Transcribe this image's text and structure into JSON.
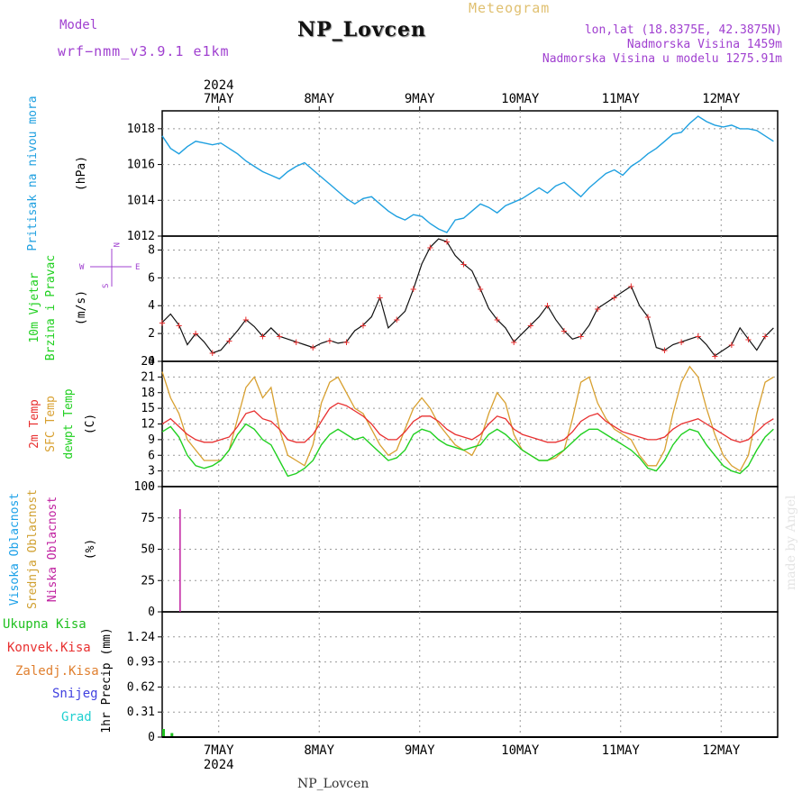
{
  "header": {
    "title": "NP_Lovcen",
    "model_label": "Model",
    "model_name": "wrf−nmm_v3.9.1  e1km",
    "meteogram_label": "Meteogram",
    "coords": "lon,lat (18.8375E, 42.3875N)",
    "elevation": "Nadmorska Visina 1459m",
    "model_elevation": "Nadmorska Visina u modelu 1275.91m"
  },
  "footer": {
    "station": "NP_Lovcen",
    "credit": "made by Angel"
  },
  "colors": {
    "pressure": "#1fa0e0",
    "t2m": "#e83030",
    "tsfc": "#d8a030",
    "dewp": "#20d020",
    "cloud_high": "#1aa0e8",
    "cloud_mid": "#d0a030",
    "cloud_low": "#c020a0",
    "precip_total": "#20c020",
    "precip_conv": "#e83030",
    "precip_frz": "#e08030",
    "snow": "#4040e0",
    "hail": "#20d0d0",
    "wind_dir": "#a040d0"
  },
  "chart_data": [
    {
      "type": "line",
      "panel": "pressure",
      "ylabels": [
        "Pritisak na nivou mora",
        "(hPa)"
      ],
      "ylim": [
        1012,
        1019
      ],
      "yticks": [
        1012,
        1014,
        1016,
        1018
      ],
      "grid": true,
      "x_top_year": "2024",
      "x_top_ticks": [
        "7MAY",
        "8MAY",
        "9MAY",
        "10MAY",
        "11MAY",
        "12MAY"
      ],
      "x": [
        0,
        2,
        4,
        6,
        8,
        10,
        12,
        14,
        16,
        18,
        20,
        22,
        24,
        26,
        28,
        30,
        32,
        34,
        36,
        38,
        40,
        42,
        44,
        46,
        48,
        50,
        52,
        54,
        56,
        58,
        60,
        62,
        64,
        66,
        68,
        70,
        72,
        74,
        76,
        78,
        80,
        82,
        84,
        86,
        88,
        90,
        92,
        94,
        96,
        98,
        100,
        102,
        104,
        106,
        108,
        110,
        112,
        114,
        116,
        118,
        120,
        122,
        124,
        126,
        128,
        130,
        132,
        134,
        136,
        138,
        140,
        142,
        144,
        146
      ],
      "series": [
        {
          "values": [
            1017.6,
            1016.9,
            1016.6,
            1017.0,
            1017.3,
            1017.2,
            1017.1,
            1017.2,
            1016.9,
            1016.6,
            1016.2,
            1015.9,
            1015.6,
            1015.4,
            1015.2,
            1015.6,
            1015.9,
            1016.1,
            1015.7,
            1015.3,
            1014.9,
            1014.5,
            1014.1,
            1013.8,
            1014.1,
            1014.2,
            1013.8,
            1013.4,
            1013.1,
            1012.9,
            1013.2,
            1013.1,
            1012.7,
            1012.4,
            1012.2,
            1012.9,
            1013.0,
            1013.4,
            1013.8,
            1013.6,
            1013.3,
            1013.7,
            1013.9,
            1014.1,
            1014.4,
            1014.7,
            1014.4,
            1014.8,
            1015.0,
            1014.6,
            1014.2,
            1014.7,
            1015.1,
            1015.5,
            1015.7,
            1015.4,
            1015.9,
            1016.2,
            1016.6,
            1016.9,
            1017.3,
            1017.7,
            1017.8,
            1018.3,
            1018.7,
            1018.4,
            1018.2,
            1018.1,
            1018.2,
            1018.0,
            1018.0,
            1017.9,
            1017.6,
            1017.3
          ]
        }
      ]
    },
    {
      "type": "line",
      "panel": "wind",
      "ylabels": [
        "10m Vjetar",
        "Brzina i Pravac",
        "(m/s)"
      ],
      "compass": [
        "W",
        "E",
        "N",
        "S"
      ],
      "ylim": [
        0,
        9
      ],
      "yticks": [
        0,
        2,
        4,
        6,
        8
      ],
      "grid": true,
      "x": [
        0,
        2,
        4,
        6,
        8,
        10,
        12,
        14,
        16,
        18,
        20,
        22,
        24,
        26,
        28,
        30,
        32,
        34,
        36,
        38,
        40,
        42,
        44,
        46,
        48,
        50,
        52,
        54,
        56,
        58,
        60,
        62,
        64,
        66,
        68,
        70,
        72,
        74,
        76,
        78,
        80,
        82,
        84,
        86,
        88,
        90,
        92,
        94,
        96,
        98,
        100,
        102,
        104,
        106,
        108,
        110,
        112,
        114,
        116,
        118,
        120,
        122,
        124,
        126,
        128,
        130,
        132,
        134,
        136,
        138,
        140,
        142,
        144,
        146
      ],
      "series": [
        {
          "name": "speed",
          "values": [
            2.8,
            3.4,
            2.6,
            1.2,
            2.0,
            1.4,
            0.6,
            0.8,
            1.5,
            2.2,
            3.0,
            2.5,
            1.8,
            2.4,
            1.8,
            1.6,
            1.4,
            1.2,
            1.0,
            1.3,
            1.5,
            1.3,
            1.4,
            2.2,
            2.6,
            3.2,
            4.6,
            2.4,
            3.0,
            3.6,
            5.2,
            7.0,
            8.2,
            8.8,
            8.6,
            7.6,
            7.0,
            6.5,
            5.2,
            3.8,
            3.0,
            2.4,
            1.4,
            2.0,
            2.6,
            3.2,
            4.0,
            3.0,
            2.2,
            1.6,
            1.8,
            2.6,
            3.8,
            4.2,
            4.6,
            5.0,
            5.4,
            4.0,
            3.2,
            1.0,
            0.8,
            1.2,
            1.4,
            1.6,
            1.8,
            1.2,
            0.4,
            0.8,
            1.2,
            2.4,
            1.6,
            0.8,
            1.8,
            2.4
          ]
        }
      ]
    },
    {
      "type": "line",
      "panel": "temperature",
      "ylabels": [
        "2m Temp",
        "SFC Temp",
        "dewpt Temp",
        "(C)"
      ],
      "ylim": [
        0,
        24
      ],
      "yticks": [
        0,
        3,
        6,
        9,
        12,
        15,
        18,
        21,
        24
      ],
      "grid": true,
      "x": [
        0,
        2,
        4,
        6,
        8,
        10,
        12,
        14,
        16,
        18,
        20,
        22,
        24,
        26,
        28,
        30,
        32,
        34,
        36,
        38,
        40,
        42,
        44,
        46,
        48,
        50,
        52,
        54,
        56,
        58,
        60,
        62,
        64,
        66,
        68,
        70,
        72,
        74,
        76,
        78,
        80,
        82,
        84,
        86,
        88,
        90,
        92,
        94,
        96,
        98,
        100,
        102,
        104,
        106,
        108,
        110,
        112,
        114,
        116,
        118,
        120,
        122,
        124,
        126,
        128,
        130,
        132,
        134,
        136,
        138,
        140,
        142,
        144,
        146
      ],
      "series": [
        {
          "name": "2m Temp",
          "values": [
            12.0,
            13.0,
            11.5,
            10.0,
            9.0,
            8.5,
            8.5,
            9.0,
            9.5,
            11.5,
            14.0,
            14.5,
            13.0,
            12.5,
            11.0,
            9.0,
            8.5,
            8.5,
            10.0,
            12.5,
            15.0,
            16.0,
            15.5,
            14.5,
            13.5,
            12.0,
            10.0,
            9.0,
            9.0,
            10.5,
            12.5,
            13.5,
            13.5,
            12.5,
            11.0,
            10.0,
            9.5,
            9.0,
            10.0,
            12.0,
            13.5,
            13.0,
            11.0,
            10.0,
            9.5,
            9.0,
            8.5,
            8.5,
            9.0,
            10.5,
            12.5,
            13.5,
            14.0,
            12.5,
            11.5,
            10.5,
            10.0,
            9.5,
            9.0,
            9.0,
            9.5,
            11.0,
            12.0,
            12.5,
            13.0,
            12.0,
            11.0,
            10.0,
            9.0,
            8.5,
            9.0,
            10.5,
            12.0,
            13.0
          ]
        },
        {
          "name": "SFC Temp",
          "values": [
            22.0,
            17.0,
            14.0,
            9.0,
            7.0,
            5.0,
            5.0,
            5.0,
            7.0,
            13.0,
            19.0,
            21.0,
            17.0,
            19.0,
            11.0,
            6.0,
            5.0,
            4.0,
            8.0,
            16.0,
            20.0,
            21.0,
            18.0,
            15.0,
            14.0,
            11.0,
            8.0,
            6.0,
            7.0,
            11.0,
            15.0,
            17.0,
            15.0,
            12.0,
            10.0,
            8.0,
            7.0,
            6.0,
            9.0,
            14.0,
            18.0,
            16.0,
            10.0,
            7.0,
            6.0,
            5.0,
            5.0,
            5.5,
            7.0,
            13.0,
            20.0,
            21.0,
            16.0,
            13.0,
            11.0,
            10.0,
            9.0,
            6.0,
            4.0,
            4.0,
            7.0,
            14.0,
            20.0,
            23.0,
            21.0,
            15.0,
            10.0,
            6.0,
            4.0,
            3.0,
            6.0,
            14.0,
            20.0,
            21.0
          ]
        },
        {
          "name": "dewpt Temp",
          "values": [
            10.5,
            11.5,
            9.5,
            6.0,
            4.0,
            3.5,
            4.0,
            5.0,
            7.0,
            10.0,
            12.0,
            11.0,
            9.0,
            8.0,
            5.0,
            2.0,
            2.5,
            3.5,
            5.0,
            8.0,
            10.0,
            11.0,
            10.0,
            9.0,
            9.5,
            8.0,
            6.5,
            5.0,
            5.5,
            7.0,
            10.0,
            11.0,
            10.5,
            9.0,
            8.0,
            7.5,
            7.0,
            7.5,
            8.0,
            10.0,
            11.0,
            10.0,
            8.5,
            7.0,
            6.0,
            5.0,
            5.0,
            6.0,
            7.0,
            8.5,
            10.0,
            11.0,
            11.0,
            10.0,
            9.0,
            8.0,
            7.0,
            5.5,
            3.5,
            3.0,
            5.0,
            8.0,
            10.0,
            11.0,
            10.5,
            8.0,
            6.0,
            4.0,
            3.0,
            2.5,
            4.0,
            7.0,
            9.5,
            11.0
          ]
        }
      ]
    },
    {
      "type": "bar",
      "panel": "cloud",
      "ylabels": [
        "Visoka Oblacnost",
        "Srednja Oblacnost",
        "Niska Oblacnost",
        "(%)"
      ],
      "ylim": [
        0,
        100
      ],
      "yticks": [
        0,
        25,
        50,
        75,
        100
      ],
      "grid": true,
      "x": [
        0,
        2,
        4,
        6,
        8,
        10,
        12,
        14,
        16,
        18,
        20,
        22,
        24,
        26,
        28,
        30,
        32,
        34,
        36,
        38,
        40,
        42,
        44,
        46,
        48,
        50,
        52,
        54,
        56,
        58,
        60,
        62,
        64,
        66,
        68,
        70,
        72,
        74,
        76,
        78,
        80,
        82,
        84,
        86,
        88,
        90,
        92,
        94,
        96,
        98,
        100,
        102,
        104,
        106,
        108,
        110,
        112,
        114,
        116,
        118,
        120,
        122,
        124,
        126,
        128,
        130,
        132,
        134,
        136,
        138,
        140,
        142,
        144,
        146
      ],
      "series": [
        {
          "name": "Visoka Oblacnost",
          "values": [
            0,
            0,
            0,
            0,
            0,
            0,
            0,
            0,
            0,
            0,
            0,
            0,
            0,
            0,
            0,
            0,
            0,
            0,
            0,
            0,
            0,
            0,
            0,
            0,
            0,
            0,
            0,
            0,
            0,
            0,
            0,
            0,
            0,
            0,
            0,
            0,
            0,
            0,
            0,
            0,
            0,
            0,
            0,
            0,
            0,
            0,
            0,
            0,
            0,
            0,
            0,
            0,
            0,
            0,
            0,
            0,
            0,
            0,
            0,
            0,
            0,
            0,
            0,
            0,
            0,
            0,
            0,
            0,
            0,
            0,
            0,
            0,
            0,
            0
          ]
        },
        {
          "name": "Srednja Oblacnost",
          "values": [
            0,
            0,
            0,
            0,
            0,
            0,
            0,
            0,
            0,
            0,
            0,
            0,
            0,
            0,
            0,
            0,
            0,
            0,
            0,
            0,
            0,
            0,
            0,
            0,
            0,
            0,
            0,
            0,
            0,
            0,
            0,
            0,
            0,
            0,
            0,
            0,
            0,
            0,
            0,
            0,
            0,
            0,
            0,
            0,
            0,
            0,
            0,
            0,
            0,
            0,
            0,
            0,
            0,
            0,
            0,
            0,
            0,
            0,
            0,
            0,
            0,
            0,
            0,
            0,
            0,
            0,
            0,
            0,
            0,
            0,
            0,
            0,
            0,
            0
          ]
        },
        {
          "name": "Niska Oblacnost",
          "values": [
            0,
            0,
            82,
            0,
            0,
            0,
            0,
            0,
            0,
            0,
            0,
            0,
            0,
            0,
            0,
            0,
            0,
            0,
            0,
            0,
            0,
            0,
            0,
            0,
            0,
            0,
            0,
            0,
            0,
            0,
            0,
            0,
            0,
            0,
            0,
            0,
            0,
            0,
            0,
            0,
            0,
            0,
            0,
            0,
            0,
            0,
            0,
            0,
            0,
            0,
            0,
            0,
            0,
            0,
            0,
            0,
            0,
            0,
            0,
            0,
            0,
            0,
            0,
            0,
            0,
            0,
            0,
            0,
            0,
            0,
            0,
            0,
            0,
            0
          ]
        }
      ]
    },
    {
      "type": "bar",
      "panel": "precip",
      "ylabels": [
        "1hr Precip (mm)"
      ],
      "legend": [
        "Ukupna Kisa",
        "Konvek.Kisa",
        "Zaledj.Kisa",
        "Snijeg",
        "Grad"
      ],
      "ylim": [
        0,
        1.55
      ],
      "yticks": [
        "0",
        "0.31",
        "0.62",
        "0.93",
        "1.24"
      ],
      "grid": true,
      "x_bottom_ticks": [
        "7MAY",
        "8MAY",
        "9MAY",
        "10MAY",
        "11MAY",
        "12MAY"
      ],
      "x_bottom_year": "2024",
      "x": [
        0,
        2,
        4,
        6,
        8,
        10,
        12,
        14,
        16,
        18,
        20,
        22,
        24,
        26,
        28,
        30,
        32,
        34,
        36,
        38,
        40,
        42,
        44,
        46,
        48,
        50,
        52,
        54,
        56,
        58,
        60,
        62,
        64,
        66,
        68,
        70,
        72,
        74,
        76,
        78,
        80,
        82,
        84,
        86,
        88,
        90,
        92,
        94,
        96,
        98,
        100,
        102,
        104,
        106,
        108,
        110,
        112,
        114,
        116,
        118,
        120,
        122,
        124,
        126,
        128,
        130,
        132,
        134,
        136,
        138,
        140,
        142,
        144,
        146
      ],
      "series": [
        {
          "name": "Ukupna Kisa",
          "values": [
            0.1,
            0.05,
            0.0,
            0.0,
            0.0,
            0.0,
            0.0,
            0.0,
            0.0,
            0.0,
            0.0,
            0.0,
            0.0,
            0.0,
            0.0,
            0.0,
            0.0,
            0.0,
            0.0,
            0.0,
            0.0,
            0.0,
            0.0,
            0.0,
            0.0,
            0.0,
            0.0,
            0.0,
            0.0,
            0.0,
            0.0,
            0.0,
            0.0,
            0.0,
            0.0,
            0.0,
            0.0,
            0.0,
            0.0,
            0.0,
            0.0,
            0.0,
            0.0,
            0.0,
            0.0,
            0.0,
            0.0,
            0.0,
            0.0,
            0.0,
            0.0,
            0.0,
            0.0,
            0.0,
            0.0,
            0.0,
            0.0,
            0.0,
            0.0,
            0.0,
            0.0,
            0.0,
            0.0,
            0.0,
            0.0,
            0.0,
            0.0,
            0.0,
            0.0,
            0.0,
            0.0,
            0.0,
            0.0,
            0.0
          ]
        }
      ]
    }
  ]
}
